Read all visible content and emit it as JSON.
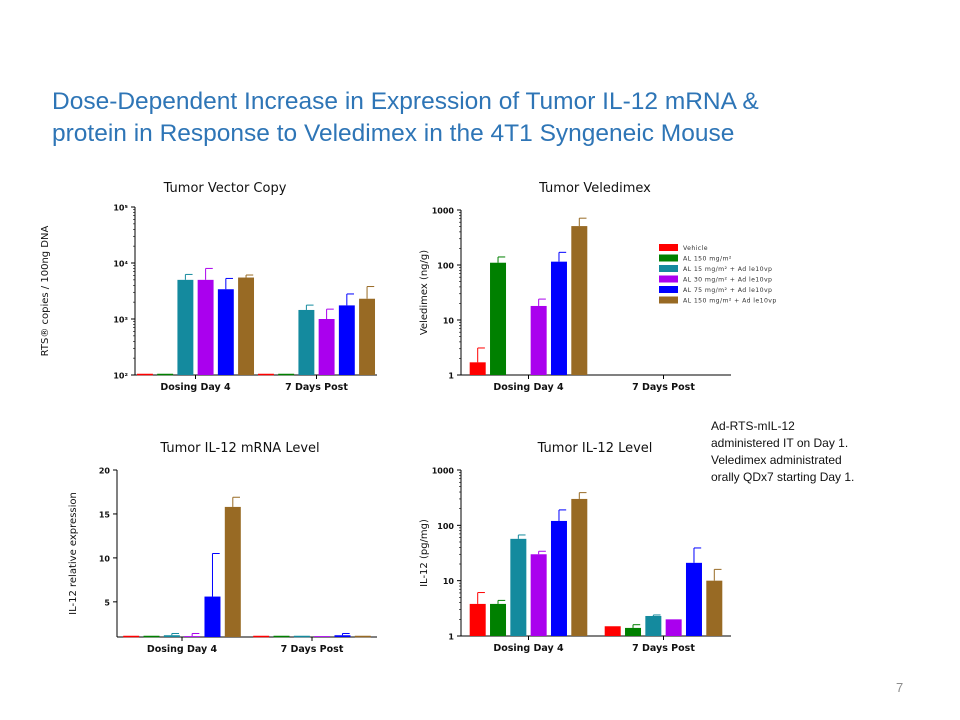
{
  "slide": {
    "title_lines": [
      "Dose-Dependent Increase in  Expression of Tumor IL-12 mRNA &",
      "protein in Response to Veledimex in the 4T1 Syngeneic Mouse"
    ],
    "note_lines": [
      "Ad-RTS-mIL-12",
      "administered IT on Day 1.",
      "Veledimex administrated",
      "orally QDx7 starting Day 1."
    ],
    "page_number": "7"
  },
  "colors": [
    "#ff0000",
    "#008000",
    "#148a9e",
    "#aa00ee",
    "#0000ff",
    "#986a24"
  ],
  "legend": {
    "entries": [
      "Vehicle",
      "AL 150 mg/m²",
      "AL 15 mg/m² + Ad le10vp",
      "AL 30 mg/m² + Ad le10vp",
      "AL 75 mg/m² + Ad le10vp",
      "AL 150 mg/m² + Ad le10vp"
    ]
  },
  "chart_data": [
    {
      "type": "bar",
      "title": "Tumor Vector Copy",
      "xlabel": "",
      "ylabel": "RTS® copies / 100ng DNA",
      "yscale": "log",
      "ylim": [
        100,
        100000
      ],
      "ytick_labels": [
        "10²",
        "10³",
        "10⁴",
        "10⁵"
      ],
      "categories": [
        "Dosing Day 4",
        "7 Days Post"
      ],
      "series": [
        {
          "values": [
            100,
            100
          ],
          "errors": [
            0,
            0
          ]
        },
        {
          "values": [
            100,
            100
          ],
          "errors": [
            0,
            0
          ]
        },
        {
          "values": [
            5000,
            1450
          ],
          "errors": [
            1250,
            320
          ]
        },
        {
          "values": [
            5000,
            1000
          ],
          "errors": [
            3000,
            500
          ]
        },
        {
          "values": [
            3400,
            1750
          ],
          "errors": [
            1900,
            1050
          ]
        },
        {
          "values": [
            5500,
            2300
          ],
          "errors": [
            600,
            1500
          ]
        }
      ]
    },
    {
      "type": "bar",
      "title": "Tumor Veledimex",
      "xlabel": "",
      "ylabel": "Veledimex (ng/g)",
      "yscale": "log",
      "ylim": [
        1,
        1000
      ],
      "ytick_labels": [
        "1",
        "10",
        "100",
        "1000"
      ],
      "categories": [
        "Dosing Day 4",
        "7 Days Post"
      ],
      "series": [
        {
          "values": [
            1.7,
            null
          ],
          "errors": [
            1.4,
            0
          ]
        },
        {
          "values": [
            110,
            null
          ],
          "errors": [
            30,
            0
          ]
        },
        {
          "values": [
            null,
            null
          ],
          "errors": [
            0,
            0
          ]
        },
        {
          "values": [
            18,
            null
          ],
          "errors": [
            6,
            0
          ]
        },
        {
          "values": [
            115,
            null
          ],
          "errors": [
            55,
            0
          ]
        },
        {
          "values": [
            510,
            null
          ],
          "errors": [
            200,
            0
          ]
        }
      ]
    },
    {
      "type": "bar",
      "title": "Tumor IL-12 mRNA Level",
      "xlabel": "",
      "ylabel": "IL-12 relative expression",
      "yscale": "linear",
      "ylim": [
        1,
        20
      ],
      "ytick_labels": [
        "5",
        "10",
        "15",
        "20"
      ],
      "categories": [
        "Dosing Day 4",
        "7 Days Post"
      ],
      "series": [
        {
          "values": [
            1,
            1
          ],
          "errors": [
            0,
            0
          ]
        },
        {
          "values": [
            1,
            1
          ],
          "errors": [
            0,
            0
          ]
        },
        {
          "values": [
            1.2,
            1
          ],
          "errors": [
            0.2,
            0
          ]
        },
        {
          "values": [
            1.1,
            1.1
          ],
          "errors": [
            0.3,
            0
          ]
        },
        {
          "values": [
            5.6,
            1.2
          ],
          "errors": [
            4.9,
            0.2
          ]
        },
        {
          "values": [
            15.8,
            1
          ],
          "errors": [
            1.1,
            0
          ]
        }
      ]
    },
    {
      "type": "bar",
      "title": "Tumor IL-12 Level",
      "xlabel": "",
      "ylabel": "IL-12 (pg/mg)",
      "yscale": "log",
      "ylim": [
        1,
        1000
      ],
      "ytick_labels": [
        "1",
        "10",
        "100",
        "1000"
      ],
      "categories": [
        "Dosing Day 4",
        "7 Days Post"
      ],
      "series": [
        {
          "values": [
            3.8,
            1.5
          ],
          "errors": [
            2.3,
            0
          ]
        },
        {
          "values": [
            3.8,
            1.4
          ],
          "errors": [
            0.6,
            0.2
          ]
        },
        {
          "values": [
            57,
            2.3
          ],
          "errors": [
            10,
            0.1
          ]
        },
        {
          "values": [
            30,
            2.0
          ],
          "errors": [
            4,
            0
          ]
        },
        {
          "values": [
            120,
            21
          ],
          "errors": [
            70,
            18
          ]
        },
        {
          "values": [
            300,
            10
          ],
          "errors": [
            90,
            6
          ]
        }
      ]
    }
  ]
}
